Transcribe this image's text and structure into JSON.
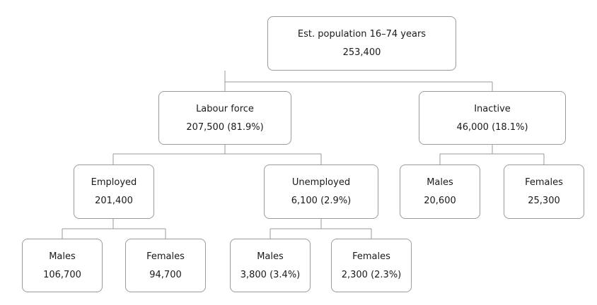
{
  "colors": {
    "border": "#9a9a9a",
    "connector": "#9a9a9a",
    "text": "#1a1a1a",
    "background": "#ffffff"
  },
  "root": {
    "label": "Est. population 16–74 years",
    "value": "253,400"
  },
  "labour_force": {
    "label": "Labour force",
    "value": "207,500 (81.9%)"
  },
  "inactive": {
    "label": "Inactive",
    "value": "46,000 (18.1%)"
  },
  "employed": {
    "label": "Employed",
    "value": "201,400"
  },
  "unemployed": {
    "label": "Unemployed",
    "value": "6,100 (2.9%)"
  },
  "inactive_males": {
    "label": "Males",
    "value": "20,600"
  },
  "inactive_females": {
    "label": "Females",
    "value": "25,300"
  },
  "employed_males": {
    "label": "Males",
    "value": "106,700"
  },
  "employed_females": {
    "label": "Females",
    "value": "94,700"
  },
  "unemployed_males": {
    "label": "Males",
    "value": "3,800 (3.4%)"
  },
  "unemployed_females": {
    "label": "Females",
    "value": "2,300 (2.3%)"
  }
}
